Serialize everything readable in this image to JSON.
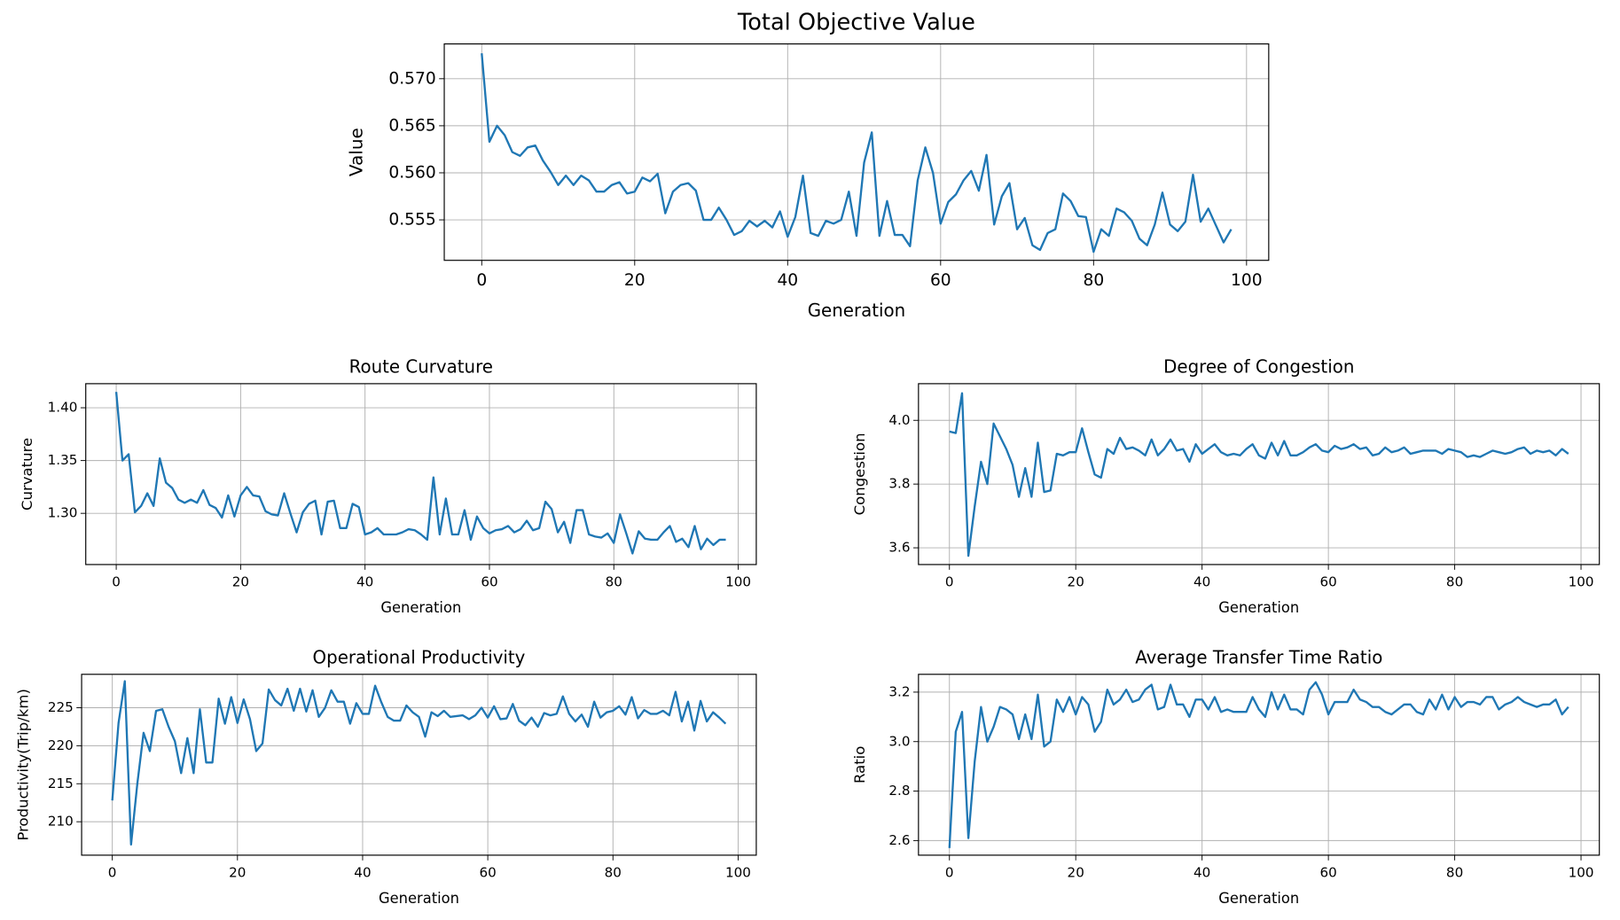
{
  "chart_data": [
    {
      "type": "line",
      "title": "Total Objective Value",
      "xlabel": "Generation",
      "ylabel": "Value",
      "color": "#1f77b4",
      "grid": true,
      "xlim": [
        -4.9,
        102.9
      ],
      "xticks": [
        0,
        20,
        40,
        60,
        80,
        100
      ],
      "ylim": [
        0.5507,
        0.5737
      ],
      "yticks": [
        0.555,
        {
          "value": 0.56,
          "label": "0.560"
        },
        0.565,
        {
          "value": 0.57,
          "label": "0.570"
        }
      ],
      "x": [
        0,
        1,
        2,
        3,
        4,
        5,
        6,
        7,
        8,
        9,
        10,
        11,
        12,
        13,
        14,
        15,
        16,
        17,
        18,
        19,
        20,
        21,
        22,
        23,
        24,
        25,
        26,
        27,
        28,
        29,
        30,
        31,
        32,
        33,
        34,
        35,
        36,
        37,
        38,
        39,
        40,
        41,
        42,
        43,
        44,
        45,
        46,
        47,
        48,
        49,
        50,
        51,
        52,
        53,
        54,
        55,
        56,
        57,
        58,
        59,
        60,
        61,
        62,
        63,
        64,
        65,
        66,
        67,
        68,
        69,
        70,
        71,
        72,
        73,
        74,
        75,
        76,
        77,
        78,
        79,
        80,
        81,
        82,
        83,
        84,
        85,
        86,
        87,
        88,
        89,
        90,
        91,
        92,
        93,
        94,
        95,
        96,
        97,
        98
      ],
      "values": [
        0.5727,
        0.5633,
        0.565,
        0.564,
        0.5622,
        0.5618,
        0.5627,
        0.5629,
        0.5613,
        0.5601,
        0.5587,
        0.5597,
        0.5587,
        0.5597,
        0.5592,
        0.558,
        0.558,
        0.5587,
        0.559,
        0.5578,
        0.558,
        0.5595,
        0.5591,
        0.5599,
        0.5557,
        0.558,
        0.5587,
        0.5589,
        0.5581,
        0.555,
        0.555,
        0.5563,
        0.555,
        0.5534,
        0.5538,
        0.5549,
        0.5543,
        0.5549,
        0.5542,
        0.5559,
        0.5532,
        0.5553,
        0.5597,
        0.5536,
        0.5533,
        0.5549,
        0.5546,
        0.555,
        0.558,
        0.5533,
        0.5611,
        0.5643,
        0.5533,
        0.557,
        0.5534,
        0.5534,
        0.5522,
        0.5592,
        0.5627,
        0.56,
        0.5546,
        0.5569,
        0.5577,
        0.5592,
        0.5602,
        0.5581,
        0.5619,
        0.5545,
        0.5575,
        0.5589,
        0.554,
        0.5552,
        0.5523,
        0.5518,
        0.5536,
        0.554,
        0.5578,
        0.557,
        0.5554,
        0.5553,
        0.5516,
        0.554,
        0.5533,
        0.5562,
        0.5558,
        0.5549,
        0.553,
        0.5523,
        0.5545,
        0.5579,
        0.5545,
        0.5538,
        0.5548,
        0.5598,
        0.5548,
        0.5562,
        0.5544,
        0.5526,
        0.554
      ]
    },
    {
      "type": "line",
      "title": "Route Curvature",
      "xlabel": "Generation",
      "ylabel": "Curvature",
      "color": "#1f77b4",
      "grid": true,
      "xlim": [
        -4.9,
        102.9
      ],
      "xticks": [
        0,
        20,
        40,
        60,
        80,
        100
      ],
      "ylim": [
        1.2515,
        1.4228
      ],
      "yticks": [
        {
          "value": 1.3,
          "label": "1.30"
        },
        1.35,
        {
          "value": 1.4,
          "label": "1.40"
        }
      ],
      "x": [
        0,
        1,
        2,
        3,
        4,
        5,
        6,
        7,
        8,
        9,
        10,
        11,
        12,
        13,
        14,
        15,
        16,
        17,
        18,
        19,
        20,
        21,
        22,
        23,
        24,
        25,
        26,
        27,
        28,
        29,
        30,
        31,
        32,
        33,
        34,
        35,
        36,
        37,
        38,
        39,
        40,
        41,
        42,
        43,
        44,
        45,
        46,
        47,
        48,
        49,
        50,
        51,
        52,
        53,
        54,
        55,
        56,
        57,
        58,
        59,
        60,
        61,
        62,
        63,
        64,
        65,
        66,
        67,
        68,
        69,
        70,
        71,
        72,
        73,
        74,
        75,
        76,
        77,
        78,
        79,
        80,
        81,
        82,
        83,
        84,
        85,
        86,
        87,
        88,
        89,
        90,
        91,
        92,
        93,
        94,
        95,
        96,
        97,
        98
      ],
      "values": [
        1.415,
        1.35,
        1.356,
        1.301,
        1.307,
        1.319,
        1.307,
        1.352,
        1.329,
        1.324,
        1.313,
        1.31,
        1.313,
        1.31,
        1.322,
        1.308,
        1.305,
        1.296,
        1.317,
        1.297,
        1.317,
        1.325,
        1.317,
        1.316,
        1.302,
        1.299,
        1.298,
        1.319,
        1.3,
        1.282,
        1.301,
        1.309,
        1.312,
        1.28,
        1.311,
        1.312,
        1.286,
        1.286,
        1.309,
        1.306,
        1.28,
        1.282,
        1.286,
        1.28,
        1.28,
        1.28,
        1.282,
        1.285,
        1.284,
        1.28,
        1.275,
        1.334,
        1.28,
        1.314,
        1.28,
        1.28,
        1.303,
        1.275,
        1.297,
        1.286,
        1.281,
        1.284,
        1.285,
        1.288,
        1.282,
        1.285,
        1.293,
        1.284,
        1.286,
        1.311,
        1.304,
        1.282,
        1.292,
        1.272,
        1.303,
        1.303,
        1.28,
        1.278,
        1.277,
        1.281,
        1.272,
        1.299,
        1.281,
        1.262,
        1.283,
        1.276,
        1.275,
        1.275,
        1.282,
        1.288,
        1.273,
        1.276,
        1.268,
        1.288,
        1.266,
        1.276,
        1.27,
        1.275,
        1.275
      ]
    },
    {
      "type": "line",
      "title": "Degree of Congestion",
      "xlabel": "Generation",
      "ylabel": "Congestion",
      "color": "#1f77b4",
      "grid": true,
      "xlim": [
        -4.9,
        102.9
      ],
      "xticks": [
        0,
        20,
        40,
        60,
        80,
        100
      ],
      "ylim": [
        3.5475,
        4.115
      ],
      "yticks": [
        3.6,
        3.8,
        {
          "value": 4,
          "label": "4.0"
        }
      ],
      "x": [
        0,
        1,
        2,
        3,
        4,
        5,
        6,
        7,
        8,
        9,
        10,
        11,
        12,
        13,
        14,
        15,
        16,
        17,
        18,
        19,
        20,
        21,
        22,
        23,
        24,
        25,
        26,
        27,
        28,
        29,
        30,
        31,
        32,
        33,
        34,
        35,
        36,
        37,
        38,
        39,
        40,
        41,
        42,
        43,
        44,
        45,
        46,
        47,
        48,
        49,
        50,
        51,
        52,
        53,
        54,
        55,
        56,
        57,
        58,
        59,
        60,
        61,
        62,
        63,
        64,
        65,
        66,
        67,
        68,
        69,
        70,
        71,
        72,
        73,
        74,
        75,
        76,
        77,
        78,
        79,
        80,
        81,
        82,
        83,
        84,
        85,
        86,
        87,
        88,
        89,
        90,
        91,
        92,
        93,
        94,
        95,
        96,
        97,
        98
      ],
      "values": [
        3.965,
        3.96,
        4.085,
        3.575,
        3.73,
        3.87,
        3.8,
        3.99,
        3.95,
        3.91,
        3.86,
        3.76,
        3.85,
        3.76,
        3.93,
        3.775,
        3.78,
        3.895,
        3.89,
        3.9,
        3.9,
        3.975,
        3.9,
        3.83,
        3.82,
        3.91,
        3.895,
        3.945,
        3.91,
        3.915,
        3.905,
        3.89,
        3.94,
        3.89,
        3.91,
        3.94,
        3.905,
        3.91,
        3.87,
        3.925,
        3.895,
        3.91,
        3.925,
        3.9,
        3.89,
        3.895,
        3.89,
        3.91,
        3.925,
        3.89,
        3.88,
        3.93,
        3.89,
        3.935,
        3.89,
        3.89,
        3.9,
        3.915,
        3.925,
        3.905,
        3.9,
        3.92,
        3.91,
        3.915,
        3.925,
        3.91,
        3.915,
        3.89,
        3.895,
        3.915,
        3.9,
        3.905,
        3.915,
        3.895,
        3.9,
        3.905,
        3.905,
        3.905,
        3.895,
        3.91,
        3.905,
        3.9,
        3.885,
        3.89,
        3.885,
        3.895,
        3.905,
        3.9,
        3.895,
        3.9,
        3.91,
        3.915,
        3.895,
        3.905,
        3.9,
        3.905,
        3.89,
        3.91,
        3.895
      ]
    },
    {
      "type": "line",
      "title": "Operational Productivity",
      "xlabel": "Generation",
      "ylabel": "Productivity(Trip/km)",
      "color": "#1f77b4",
      "grid": true,
      "xlim": [
        -4.9,
        102.9
      ],
      "xticks": [
        0,
        20,
        40,
        60,
        80,
        100
      ],
      "ylim": [
        205.6,
        229.4
      ],
      "yticks": [
        210,
        215,
        220,
        225
      ],
      "x": [
        0,
        1,
        2,
        3,
        4,
        5,
        6,
        7,
        8,
        9,
        10,
        11,
        12,
        13,
        14,
        15,
        16,
        17,
        18,
        19,
        20,
        21,
        22,
        23,
        24,
        25,
        26,
        27,
        28,
        29,
        30,
        31,
        32,
        33,
        34,
        35,
        36,
        37,
        38,
        39,
        40,
        41,
        42,
        43,
        44,
        45,
        46,
        47,
        48,
        49,
        50,
        51,
        52,
        53,
        54,
        55,
        56,
        57,
        58,
        59,
        60,
        61,
        62,
        63,
        64,
        65,
        66,
        67,
        68,
        69,
        70,
        71,
        72,
        73,
        74,
        75,
        76,
        77,
        78,
        79,
        80,
        81,
        82,
        83,
        84,
        85,
        86,
        87,
        88,
        89,
        90,
        91,
        92,
        93,
        94,
        95,
        96,
        97,
        98
      ],
      "values": [
        212.8,
        223,
        228.5,
        207,
        215,
        221.7,
        219.3,
        224.6,
        224.8,
        222.5,
        220.6,
        216.4,
        221,
        216.4,
        224.8,
        217.8,
        217.8,
        226.2,
        222.9,
        226.4,
        223,
        226.1,
        223.5,
        219.3,
        220.3,
        227.4,
        226,
        225.3,
        227.5,
        224.6,
        227.5,
        224.5,
        227.3,
        223.8,
        225,
        227.3,
        225.8,
        225.8,
        222.9,
        225.6,
        224.2,
        224.2,
        227.9,
        225.7,
        223.8,
        223.3,
        223.3,
        225.3,
        224.4,
        223.8,
        221.2,
        224.4,
        223.9,
        224.6,
        223.8,
        223.9,
        224.0,
        223.5,
        224.0,
        225.0,
        223.7,
        225.2,
        223.5,
        223.6,
        225.5,
        223.3,
        222.7,
        223.7,
        222.5,
        224.3,
        224,
        224.2,
        226.5,
        224.2,
        223.2,
        224.1,
        222.5,
        225.8,
        223.7,
        224.4,
        224.6,
        225.2,
        224.1,
        226.4,
        223.6,
        224.7,
        224.2,
        224.2,
        224.6,
        224,
        227.1,
        223.2,
        225.8,
        222,
        225.9,
        223.2,
        224.4,
        223.7,
        222.9
      ]
    },
    {
      "type": "line",
      "title": "Average Transfer Time Ratio",
      "xlabel": "Generation",
      "ylabel": "Ratio",
      "color": "#1f77b4",
      "grid": true,
      "xlim": [
        -4.9,
        102.9
      ],
      "xticks": [
        0,
        20,
        40,
        60,
        80,
        100
      ],
      "ylim": [
        2.541,
        3.272
      ],
      "yticks": [
        2.6,
        2.8,
        {
          "value": 3,
          "label": "3.0"
        },
        3.2
      ],
      "x": [
        0,
        1,
        2,
        3,
        4,
        5,
        6,
        7,
        8,
        9,
        10,
        11,
        12,
        13,
        14,
        15,
        16,
        17,
        18,
        19,
        20,
        21,
        22,
        23,
        24,
        25,
        26,
        27,
        28,
        29,
        30,
        31,
        32,
        33,
        34,
        35,
        36,
        37,
        38,
        39,
        40,
        41,
        42,
        43,
        44,
        45,
        46,
        47,
        48,
        49,
        50,
        51,
        52,
        53,
        54,
        55,
        56,
        57,
        58,
        59,
        60,
        61,
        62,
        63,
        64,
        65,
        66,
        67,
        68,
        69,
        70,
        71,
        72,
        73,
        74,
        75,
        76,
        77,
        78,
        79,
        80,
        81,
        82,
        83,
        84,
        85,
        86,
        87,
        88,
        89,
        90,
        91,
        92,
        93,
        94,
        95,
        96,
        97,
        98
      ],
      "values": [
        2.57,
        3.04,
        3.12,
        2.61,
        2.92,
        3.14,
        3.0,
        3.06,
        3.14,
        3.13,
        3.11,
        3.01,
        3.11,
        3.01,
        3.19,
        2.98,
        3.0,
        3.17,
        3.12,
        3.18,
        3.11,
        3.18,
        3.15,
        3.04,
        3.08,
        3.21,
        3.15,
        3.17,
        3.21,
        3.16,
        3.17,
        3.21,
        3.23,
        3.13,
        3.14,
        3.23,
        3.15,
        3.15,
        3.1,
        3.17,
        3.17,
        3.13,
        3.18,
        3.12,
        3.13,
        3.12,
        3.12,
        3.12,
        3.18,
        3.13,
        3.1,
        3.2,
        3.13,
        3.19,
        3.13,
        3.13,
        3.11,
        3.21,
        3.24,
        3.19,
        3.11,
        3.16,
        3.16,
        3.16,
        3.21,
        3.17,
        3.16,
        3.14,
        3.14,
        3.12,
        3.11,
        3.13,
        3.15,
        3.15,
        3.12,
        3.11,
        3.17,
        3.13,
        3.19,
        3.13,
        3.18,
        3.14,
        3.16,
        3.16,
        3.15,
        3.18,
        3.18,
        3.13,
        3.15,
        3.16,
        3.18,
        3.16,
        3.15,
        3.14,
        3.15,
        3.15,
        3.17,
        3.11,
        3.14
      ]
    }
  ]
}
